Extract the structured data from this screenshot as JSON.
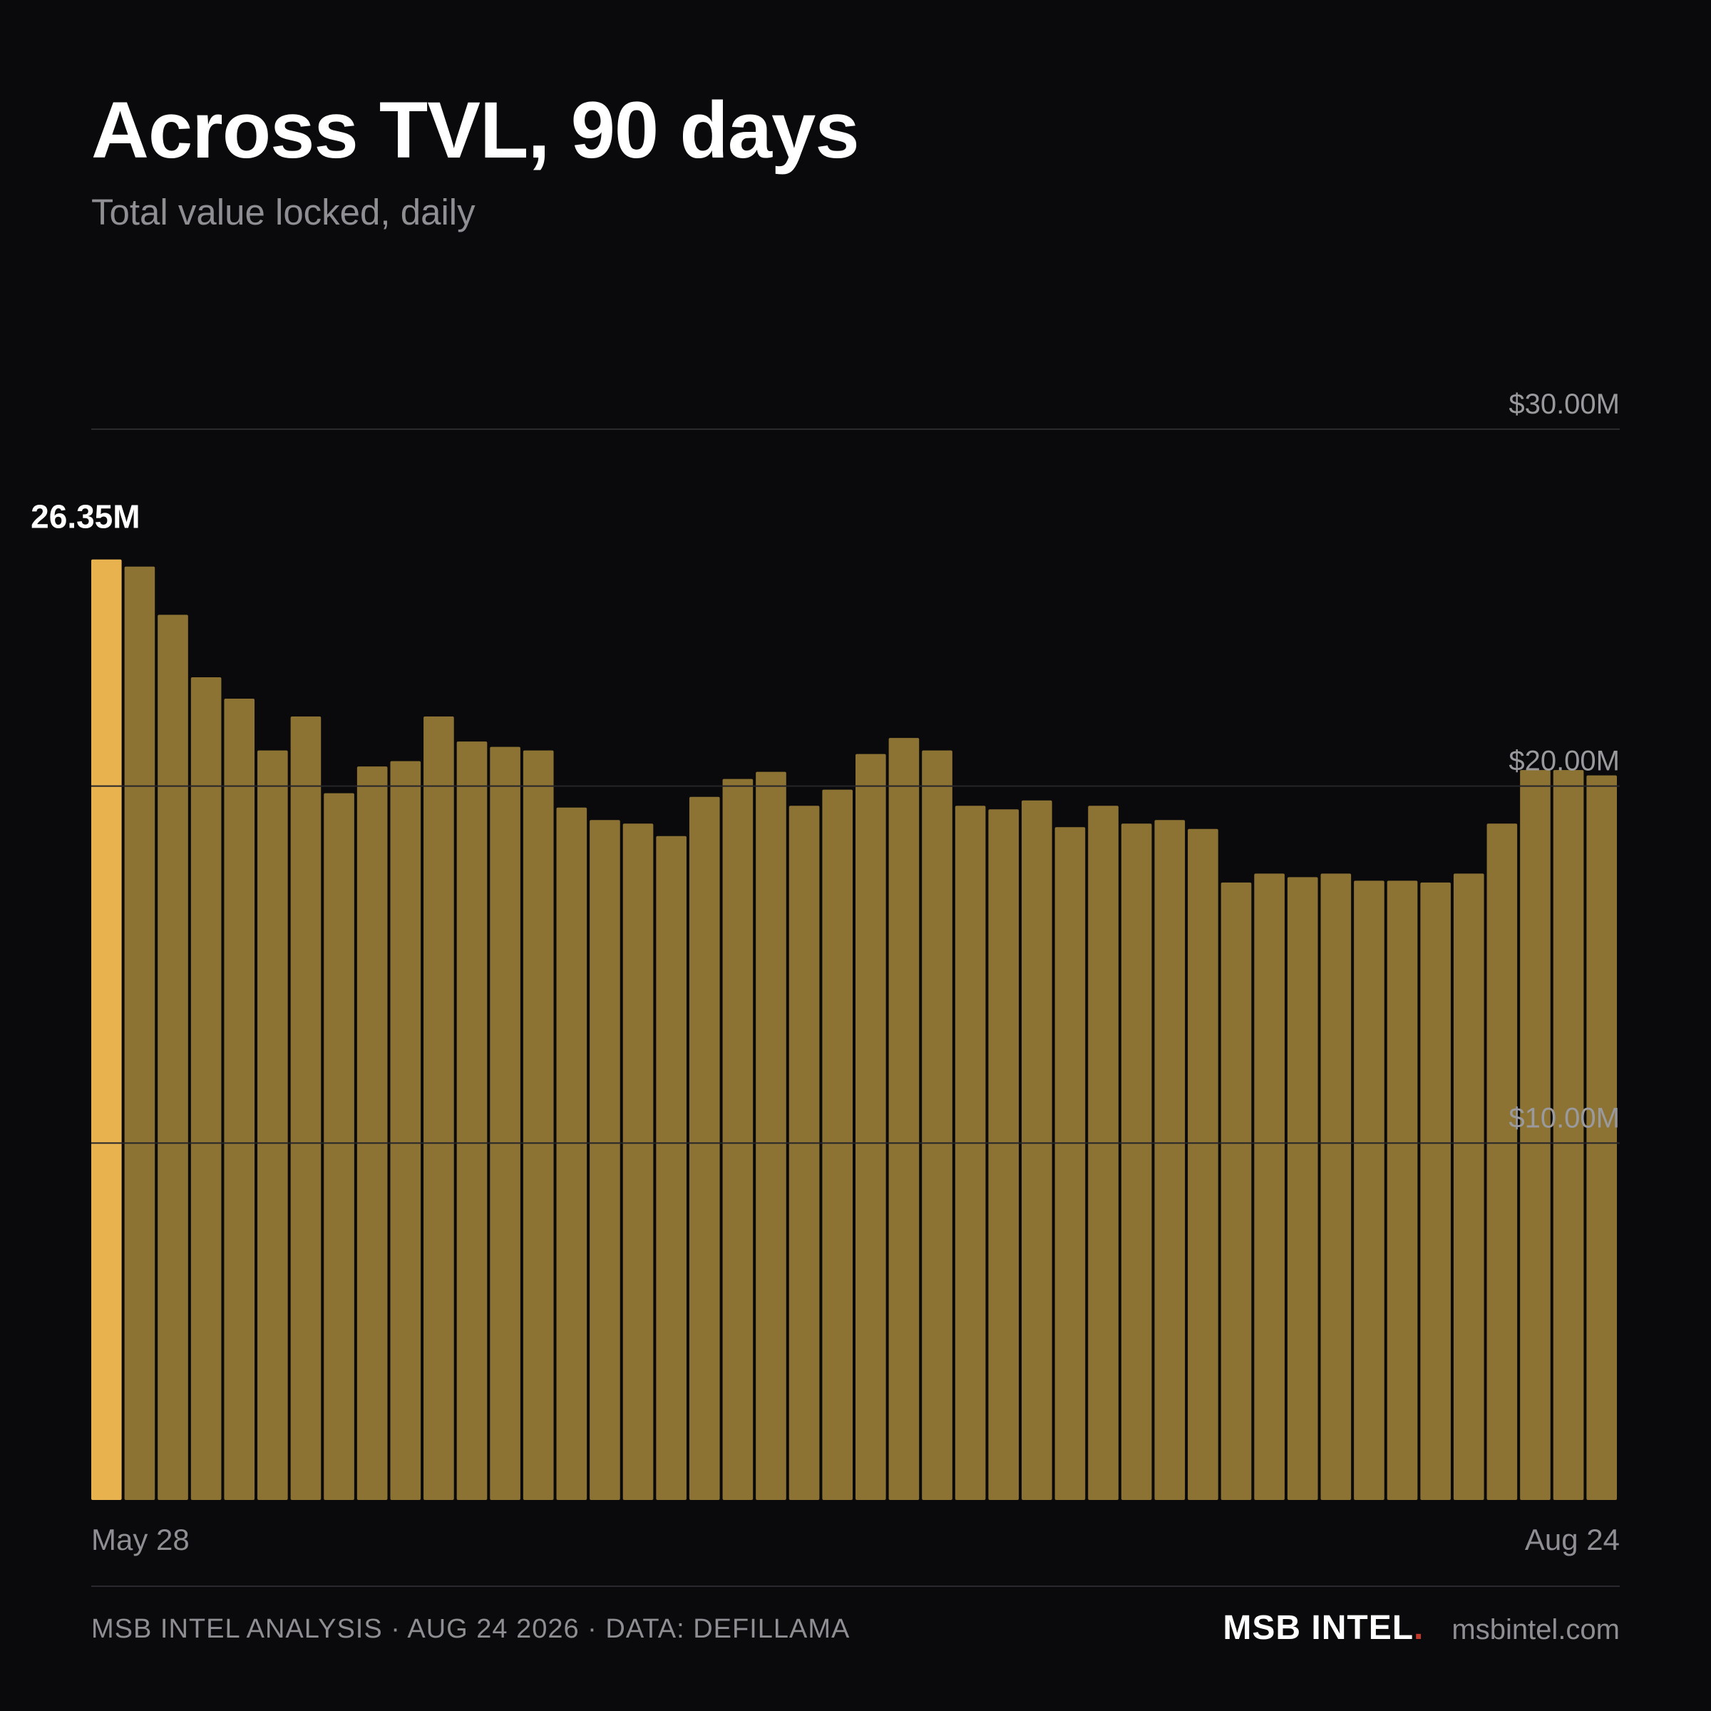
{
  "title": "Across TVL, 90 days",
  "subtitle": "Total value locked, daily",
  "colors": {
    "bar": "#8c7334",
    "highlight_bar": "#e8b24f",
    "grid": "#2b2b2e",
    "background": "#0a0a0c"
  },
  "chart_data": {
    "type": "bar",
    "x_start_label": "May 28",
    "x_end_label": "Aug 24",
    "y_ticks": [
      {
        "value": 10,
        "label": "$10.00M"
      },
      {
        "value": 20,
        "label": "$20.00M"
      },
      {
        "value": 30,
        "label": "$30.00M"
      }
    ],
    "ylim": [
      0,
      30
    ],
    "grid": true,
    "highlight": {
      "index": 0,
      "label": "26.35M"
    },
    "values": [
      26.35,
      26.15,
      24.8,
      23.05,
      22.45,
      21.0,
      21.95,
      19.8,
      20.55,
      20.7,
      21.95,
      21.25,
      21.1,
      21.0,
      19.4,
      19.05,
      18.95,
      18.6,
      19.7,
      20.2,
      20.4,
      19.45,
      19.9,
      20.9,
      21.35,
      21.0,
      19.45,
      19.35,
      19.6,
      18.85,
      19.45,
      18.95,
      19.05,
      18.8,
      17.3,
      17.55,
      17.45,
      17.55,
      17.35,
      17.35,
      17.3,
      17.55,
      18.95,
      20.45,
      20.45,
      20.3
    ]
  },
  "footer": {
    "credit": "MSB INTEL ANALYSIS · AUG 24 2026 · DATA: DEFILLAMA",
    "brand": "MSB INTEL",
    "brand_dot": ".",
    "site": "msbintel.com"
  }
}
